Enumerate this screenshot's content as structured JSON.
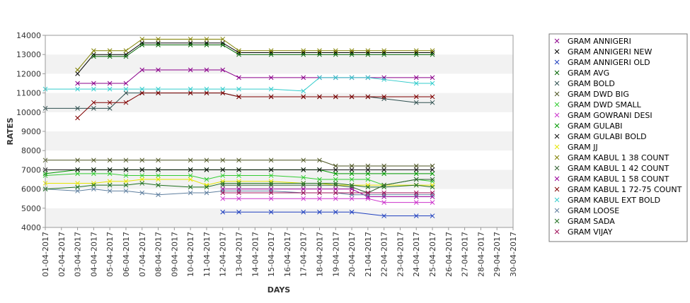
{
  "chart_data": {
    "type": "line",
    "title": "",
    "xlabel": "DAYS",
    "ylabel": "RATES",
    "ylim": [
      4000,
      14000
    ],
    "yticks": [
      4000,
      5000,
      6000,
      7000,
      8000,
      9000,
      10000,
      11000,
      12000,
      13000,
      14000
    ],
    "grid": "alternating horizontal bands",
    "legend_position": "right",
    "categories": [
      "01-04-2017",
      "02-04-2017",
      "03-04-2017",
      "04-04-2017",
      "05-04-2017",
      "06-04-2017",
      "07-04-2017",
      "08-04-2017",
      "09-04-2017",
      "10-04-2017",
      "11-04-2017",
      "12-04-2017",
      "13-04-2017",
      "14-04-2017",
      "15-04-2017",
      "16-04-2017",
      "17-04-2017",
      "18-04-2017",
      "19-04-2017",
      "20-04-2017",
      "21-04-2017",
      "22-04-2017",
      "23-04-2017",
      "24-04-2017",
      "25-04-2017",
      "26-04-2017",
      "27-04-2017",
      "28-04-2017",
      "29-04-2017",
      "30-04-2017"
    ],
    "series": [
      {
        "name": "GRAM ANNIGERI",
        "color": "#8b008b",
        "values": [
          null,
          null,
          11500,
          11500,
          11500,
          11500,
          12200,
          12200,
          null,
          12200,
          12200,
          12200,
          11800,
          null,
          11800,
          null,
          11800,
          11800,
          11800,
          11800,
          11800,
          11800,
          null,
          11800,
          11800,
          null,
          null,
          null,
          null,
          null
        ]
      },
      {
        "name": "GRAM ANNIGERI NEW",
        "color": "#000000",
        "values": [
          null,
          null,
          12000,
          13000,
          13000,
          13000,
          13600,
          13600,
          null,
          13600,
          13600,
          13600,
          13100,
          null,
          13100,
          null,
          13100,
          13100,
          13100,
          13100,
          13100,
          13100,
          null,
          13100,
          13100,
          null,
          null,
          null,
          null,
          null
        ]
      },
      {
        "name": "GRAM ANNIGERI OLD",
        "color": "#1e3fbf",
        "values": [
          null,
          null,
          null,
          null,
          null,
          null,
          null,
          null,
          null,
          null,
          null,
          4800,
          4800,
          null,
          4800,
          null,
          4800,
          4800,
          4800,
          4800,
          null,
          4600,
          null,
          4600,
          4600,
          null,
          null,
          null,
          null,
          null
        ]
      },
      {
        "name": "GRAM AVG",
        "color": "#006400",
        "values": [
          null,
          null,
          null,
          12900,
          12900,
          12900,
          13500,
          13500,
          null,
          13500,
          13500,
          13500,
          13000,
          null,
          13000,
          null,
          13000,
          13000,
          13000,
          13000,
          13000,
          13000,
          null,
          13000,
          13000,
          null,
          null,
          null,
          null,
          null
        ]
      },
      {
        "name": "GRAM BOLD",
        "color": "#2f4f4f",
        "values": [
          10200,
          null,
          10200,
          10200,
          10200,
          11000,
          11000,
          11000,
          null,
          11000,
          11000,
          11000,
          10800,
          null,
          10800,
          null,
          10800,
          10800,
          10800,
          10800,
          10800,
          10700,
          null,
          10500,
          10500,
          null,
          null,
          null,
          null,
          null
        ]
      },
      {
        "name": "GRAM DWD BIG",
        "color": "#4b5320",
        "values": [
          7500,
          null,
          7500,
          7500,
          7500,
          7500,
          7500,
          7500,
          null,
          7500,
          7500,
          7500,
          7500,
          null,
          7500,
          null,
          7500,
          7500,
          7200,
          7200,
          7200,
          7200,
          null,
          7200,
          7200,
          null,
          null,
          null,
          null,
          null
        ]
      },
      {
        "name": "GRAM DWD SMALL",
        "color": "#33cc33",
        "values": [
          6700,
          null,
          6800,
          6800,
          6800,
          6700,
          6700,
          6700,
          null,
          6700,
          6500,
          6700,
          6700,
          null,
          6700,
          null,
          6600,
          6500,
          6500,
          6500,
          6500,
          6200,
          null,
          6500,
          6400,
          null,
          null,
          null,
          null,
          null
        ]
      },
      {
        "name": "GRAM GOWRANI DESI",
        "color": "#cc33cc",
        "values": [
          null,
          null,
          null,
          null,
          null,
          null,
          null,
          null,
          null,
          null,
          null,
          5500,
          5500,
          null,
          5500,
          null,
          5500,
          5500,
          5500,
          5500,
          5500,
          5300,
          null,
          5300,
          5300,
          null,
          null,
          null,
          null,
          null
        ]
      },
      {
        "name": "GRAM GULABI",
        "color": "#009900",
        "values": [
          6800,
          null,
          7000,
          7000,
          7000,
          7000,
          7000,
          7000,
          null,
          7000,
          7000,
          7000,
          7000,
          null,
          7000,
          null,
          7000,
          7000,
          6800,
          6800,
          6800,
          6800,
          null,
          6800,
          6800,
          null,
          null,
          null,
          null,
          null
        ]
      },
      {
        "name": "GRAM GULABI BOLD",
        "color": "#111111",
        "values": [
          7000,
          null,
          7000,
          7000,
          7000,
          7000,
          7000,
          7000,
          null,
          7000,
          7000,
          7000,
          7000,
          null,
          7000,
          null,
          7000,
          7000,
          7000,
          7000,
          7000,
          7000,
          null,
          7000,
          7000,
          null,
          null,
          null,
          null,
          null
        ]
      },
      {
        "name": "GRAM JJ",
        "color": "#e6e600",
        "values": [
          6300,
          null,
          6300,
          6300,
          6400,
          6400,
          6500,
          6500,
          null,
          6500,
          6200,
          6400,
          6400,
          null,
          6400,
          null,
          6300,
          6300,
          6200,
          6200,
          6200,
          6200,
          null,
          6200,
          6200,
          null,
          null,
          null,
          null,
          null
        ]
      },
      {
        "name": "GRAM KABUL 1 38 COUNT",
        "color": "#808000",
        "values": [
          null,
          null,
          12200,
          13200,
          13200,
          13200,
          13800,
          13800,
          null,
          13800,
          13800,
          13800,
          13200,
          null,
          13200,
          null,
          13200,
          13200,
          13200,
          13200,
          13200,
          13200,
          null,
          13200,
          13200,
          null,
          null,
          null,
          null,
          null
        ]
      },
      {
        "name": "GRAM KABUL 1 42 COUNT",
        "color": "#2e5e2e",
        "values": [
          null,
          null,
          null,
          null,
          null,
          null,
          null,
          null,
          null,
          null,
          null,
          6200,
          6200,
          null,
          6200,
          null,
          6200,
          6200,
          6200,
          6100,
          5800,
          6200,
          null,
          6500,
          6500,
          null,
          null,
          null,
          null,
          null
        ]
      },
      {
        "name": "GRAM KABUL 1 58 COUNT",
        "color": "#990099",
        "values": [
          null,
          null,
          null,
          null,
          null,
          null,
          null,
          null,
          null,
          null,
          null,
          6000,
          6000,
          null,
          6000,
          null,
          6000,
          6000,
          6000,
          6000,
          5600,
          5600,
          null,
          5600,
          5600,
          null,
          null,
          null,
          null,
          null
        ]
      },
      {
        "name": "GRAM KABUL 1 72-75 COUNT",
        "color": "#800000",
        "values": [
          null,
          null,
          9700,
          10500,
          10500,
          10500,
          11000,
          11000,
          null,
          11000,
          11000,
          11000,
          10800,
          null,
          10800,
          null,
          10800,
          10800,
          10800,
          10800,
          10800,
          10800,
          null,
          10800,
          10800,
          null,
          null,
          null,
          null,
          null
        ]
      },
      {
        "name": "GRAM KABUL EXT BOLD",
        "color": "#33cccc",
        "values": [
          11200,
          null,
          11200,
          11200,
          11200,
          11200,
          11200,
          11200,
          null,
          11200,
          11200,
          11200,
          11200,
          null,
          11200,
          null,
          11100,
          11800,
          11800,
          11800,
          11800,
          11700,
          null,
          11500,
          11500,
          null,
          null,
          null,
          null,
          null
        ]
      },
      {
        "name": "GRAM LOOSE",
        "color": "#5f7f9f",
        "values": [
          6000,
          null,
          5900,
          6000,
          5900,
          5900,
          5800,
          5700,
          null,
          5800,
          5800,
          5900,
          5900,
          null,
          5900,
          null,
          5800,
          5800,
          5800,
          5700,
          5700,
          5700,
          null,
          5700,
          5700,
          null,
          null,
          null,
          null,
          null
        ]
      },
      {
        "name": "GRAM SADA",
        "color": "#207020",
        "values": [
          6000,
          null,
          6100,
          6200,
          6200,
          6200,
          6300,
          6200,
          null,
          6100,
          6100,
          6300,
          6300,
          null,
          6300,
          null,
          6300,
          6300,
          6300,
          6200,
          6100,
          6100,
          null,
          6200,
          6100,
          null,
          null,
          null,
          null,
          null
        ]
      },
      {
        "name": "GRAM VIJAY",
        "color": "#a0105a",
        "values": [
          null,
          null,
          null,
          null,
          null,
          null,
          null,
          null,
          null,
          null,
          null,
          5800,
          5800,
          null,
          5800,
          null,
          5800,
          5800,
          5800,
          5800,
          5800,
          5800,
          null,
          5800,
          5800,
          null,
          null,
          null,
          null,
          null
        ]
      }
    ]
  }
}
